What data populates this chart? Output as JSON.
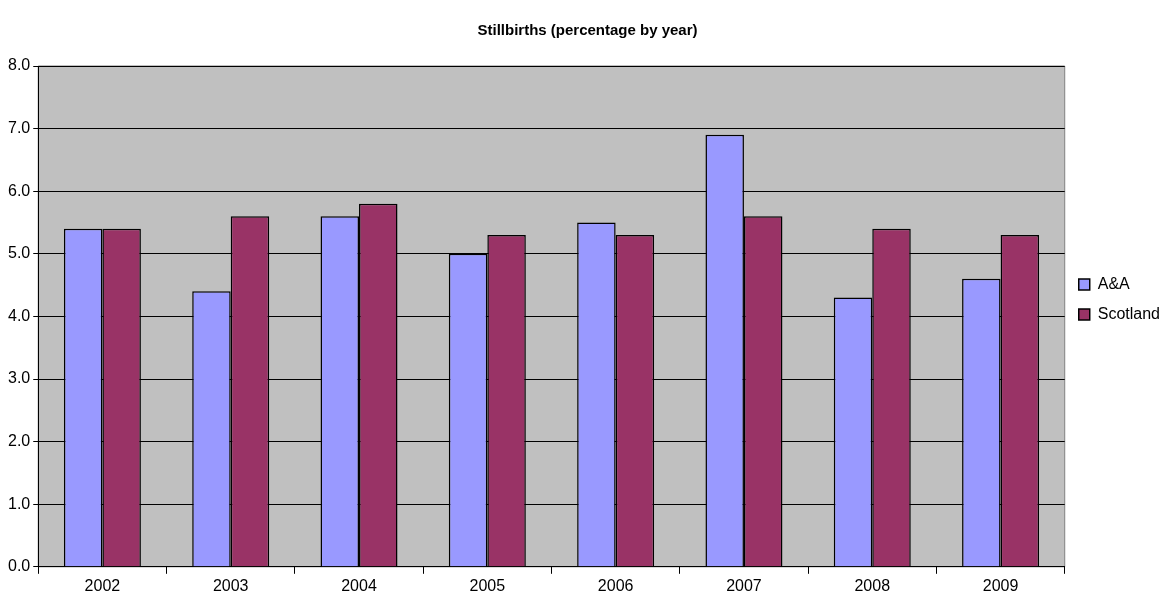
{
  "chart_data": {
    "type": "bar",
    "title": "Stillbirths (percentage by year)",
    "categories": [
      "2002",
      "2003",
      "2004",
      "2005",
      "2006",
      "2007",
      "2008",
      "2009"
    ],
    "series": [
      {
        "name": "A&A",
        "color": "#9999ff",
        "values": [
          5.4,
          4.4,
          5.6,
          5.0,
          5.5,
          6.9,
          4.3,
          4.6
        ]
      },
      {
        "name": "Scotland",
        "color": "#993366",
        "values": [
          5.4,
          5.6,
          5.8,
          5.3,
          5.3,
          5.6,
          5.4,
          5.3
        ]
      }
    ],
    "ylim": [
      0,
      8
    ],
    "yticks": [
      {
        "value": 0,
        "label": "0.0"
      },
      {
        "value": 1,
        "label": "1.0"
      },
      {
        "value": 2,
        "label": "2.0"
      },
      {
        "value": 3,
        "label": "3.0"
      },
      {
        "value": 4,
        "label": "4.0"
      },
      {
        "value": 5,
        "label": "5.0"
      },
      {
        "value": 6,
        "label": "6.0"
      },
      {
        "value": 7,
        "label": "7.0"
      },
      {
        "value": 8,
        "label": "8.0"
      }
    ],
    "grid": "y",
    "legend": "right"
  }
}
